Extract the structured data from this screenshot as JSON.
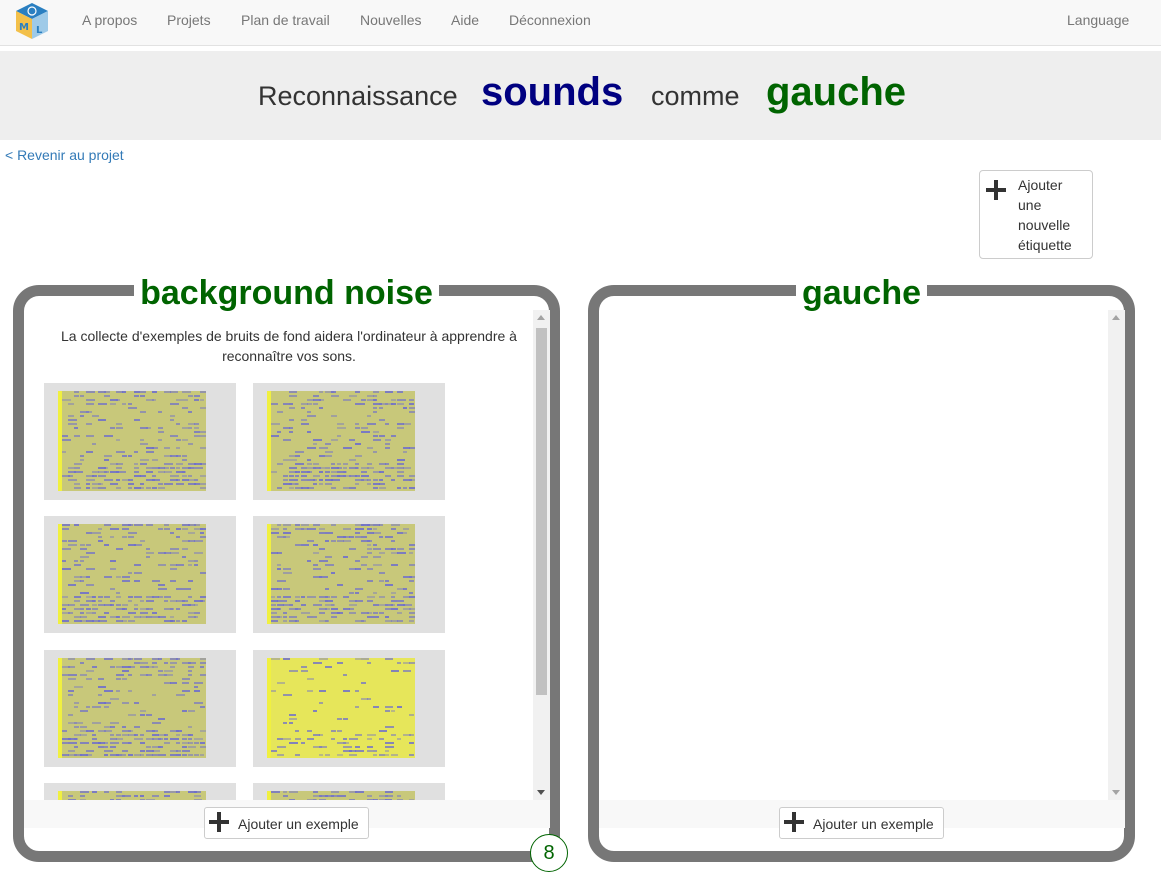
{
  "colors": {
    "title_blue": "#000080",
    "title_green": "#006400",
    "link_blue": "#337ab7",
    "panel_border": "#777777"
  },
  "navbar": {
    "logo_icon": "ml-cube-logo",
    "items": [
      "A propos",
      "Projets",
      "Plan de travail",
      "Nouvelles",
      "Aide",
      "Déconnexion"
    ],
    "language": "Language"
  },
  "title": {
    "word1": "Reconnaissance",
    "word2": "sounds",
    "word3": "comme",
    "word4": "gauche"
  },
  "back_link": "< Revenir au projet",
  "add_label_button": {
    "label": "Ajouter une nouvelle étiquette",
    "icon": "plus-icon"
  },
  "panels": [
    {
      "title": "background noise",
      "help_text": "La collecte d'exemples de bruits de fond aidera l'ordinateur à apprendre à reconnaître vos sons.",
      "add_example_label": "Ajouter un exemple",
      "count": "8",
      "examples": [
        "spectrogram",
        "spectrogram",
        "spectrogram",
        "spectrogram",
        "spectrogram",
        "spectrogram",
        "spectrogram",
        "spectrogram"
      ]
    },
    {
      "title": "gauche",
      "add_example_label": "Ajouter un exemple",
      "examples": []
    }
  ]
}
